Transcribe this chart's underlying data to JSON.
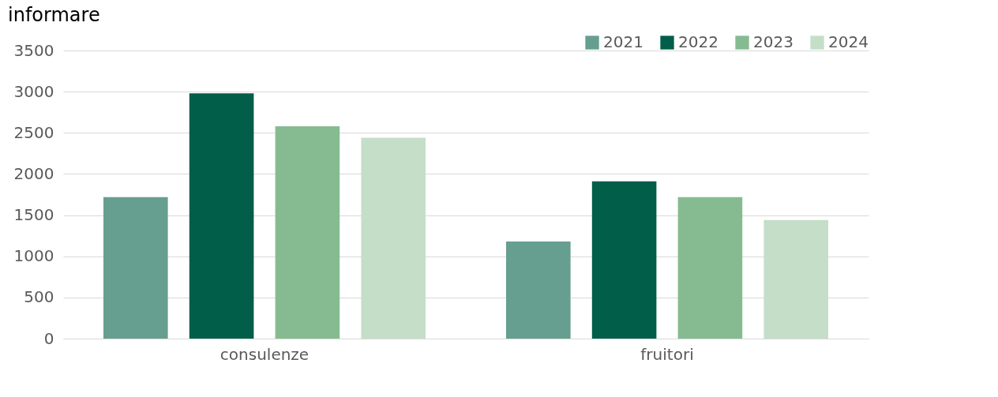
{
  "chart_data": {
    "type": "bar",
    "title": "informare",
    "categories": [
      "consulenze",
      "fruitori"
    ],
    "series": [
      {
        "name": "2021",
        "color": "#669e8f",
        "values": [
          1720,
          1180
        ]
      },
      {
        "name": "2022",
        "color": "#005e49",
        "values": [
          2980,
          1910
        ]
      },
      {
        "name": "2023",
        "color": "#86bb91",
        "values": [
          2580,
          1720
        ]
      },
      {
        "name": "2024",
        "color": "#c5dec8",
        "values": [
          2440,
          1440
        ]
      }
    ],
    "ylim": [
      0,
      3500
    ],
    "yticks": [
      0,
      500,
      1000,
      1500,
      2000,
      2500,
      3000,
      3500
    ],
    "grid": "y",
    "legend": "top right"
  }
}
